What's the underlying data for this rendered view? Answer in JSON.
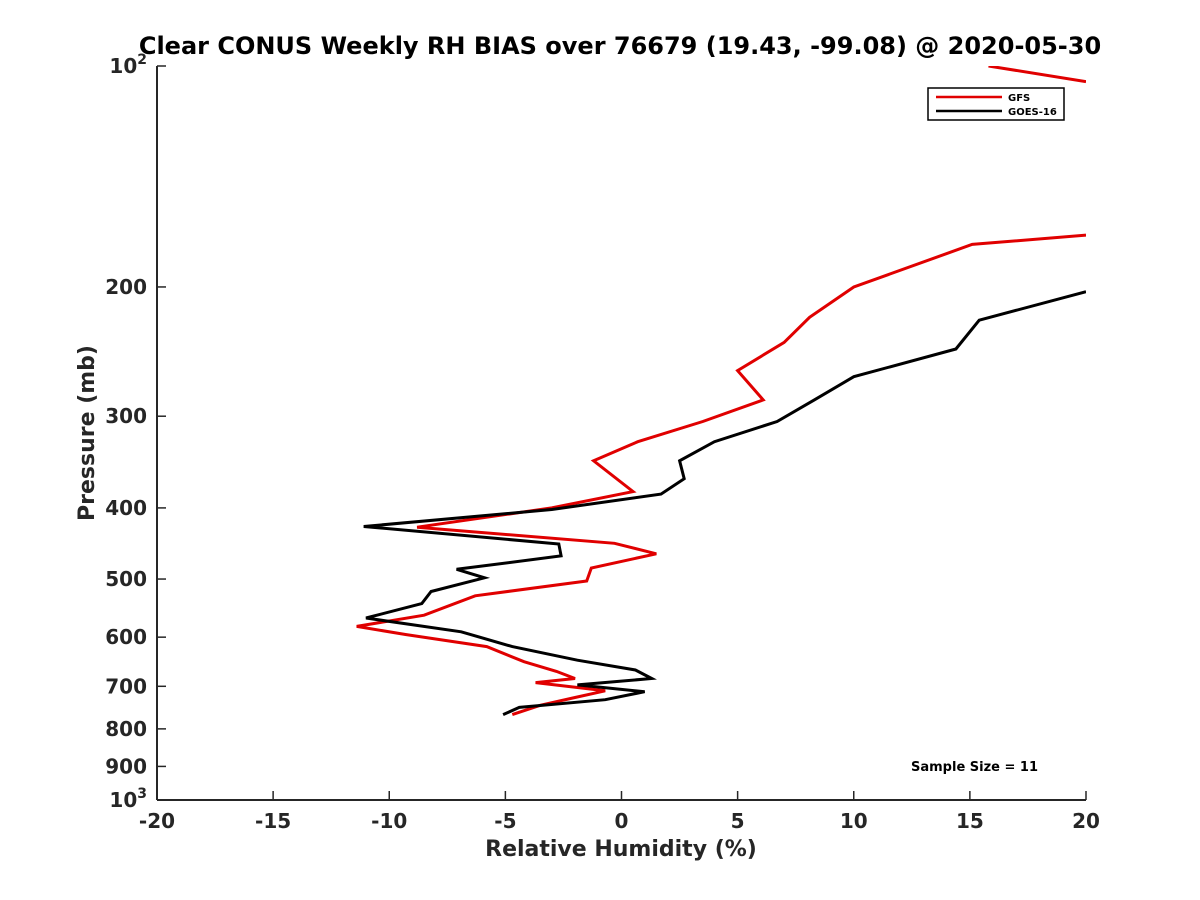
{
  "chart_data": {
    "type": "line",
    "title": "Clear CONUS Weekly RH BIAS over 76679 (19.43, -99.08) @ 2020-05-30",
    "xlabel": "Relative Humidity (%)",
    "ylabel": "Pressure (mb)",
    "xlim": [
      -20,
      20
    ],
    "ylim": [
      100,
      1000
    ],
    "y_scale": "log",
    "y_reversed": true,
    "x_ticks": [
      "-20",
      "-15",
      "-10",
      "-5",
      "0",
      "5",
      "10",
      "15",
      "20"
    ],
    "y_ticks": [
      {
        "value": 100,
        "base": "10",
        "exp": "2"
      },
      {
        "value": 200,
        "label": "200"
      },
      {
        "value": 300,
        "label": "300"
      },
      {
        "value": 400,
        "label": "400"
      },
      {
        "value": 500,
        "label": "500"
      },
      {
        "value": 600,
        "label": "600"
      },
      {
        "value": 700,
        "label": "700"
      },
      {
        "value": 800,
        "label": "800"
      },
      {
        "value": 900,
        "label": "900"
      },
      {
        "value": 1000,
        "base": "10",
        "exp": "3"
      }
    ],
    "grid": false,
    "legend_position": "top-right",
    "series": [
      {
        "name": "GFS",
        "color": "#e00000",
        "points": [
          [
            15.8,
            100
          ],
          [
            20.0,
            105
          ],
          [
            20.0,
            170
          ],
          [
            15.1,
            175
          ],
          [
            10.0,
            200
          ],
          [
            8.1,
            220
          ],
          [
            7.0,
            238
          ],
          [
            5.0,
            260
          ],
          [
            6.1,
            285
          ],
          [
            3.5,
            305
          ],
          [
            0.7,
            325
          ],
          [
            -1.2,
            345
          ],
          [
            0.5,
            380
          ],
          [
            -3.0,
            400
          ],
          [
            -8.8,
            425
          ],
          [
            -0.3,
            447
          ],
          [
            1.5,
            462
          ],
          [
            -1.3,
            483
          ],
          [
            -1.5,
            503
          ],
          [
            -6.3,
            527
          ],
          [
            -8.5,
            560
          ],
          [
            -11.4,
            580
          ],
          [
            -9.3,
            595
          ],
          [
            -5.8,
            618
          ],
          [
            -4.2,
            648
          ],
          [
            -2.8,
            668
          ],
          [
            -2.0,
            683
          ],
          [
            -3.7,
            692
          ],
          [
            -0.7,
            710
          ],
          [
            -2.0,
            725
          ],
          [
            -3.5,
            743
          ],
          [
            -4.7,
            765
          ]
        ]
      },
      {
        "name": "GOES-16",
        "color": "#000000",
        "points": [
          [
            20.0,
            203
          ],
          [
            15.4,
            222
          ],
          [
            14.4,
            243
          ],
          [
            10.0,
            265
          ],
          [
            8.3,
            285
          ],
          [
            6.7,
            305
          ],
          [
            4.0,
            325
          ],
          [
            2.5,
            345
          ],
          [
            2.7,
            365
          ],
          [
            1.7,
            383
          ],
          [
            -3.0,
            402
          ],
          [
            -11.1,
            424
          ],
          [
            -2.7,
            448
          ],
          [
            -2.6,
            465
          ],
          [
            -7.1,
            485
          ],
          [
            -5.9,
            498
          ],
          [
            -8.2,
            520
          ],
          [
            -8.6,
            540
          ],
          [
            -11.0,
            565
          ],
          [
            -6.9,
            590
          ],
          [
            -4.7,
            618
          ],
          [
            -1.9,
            645
          ],
          [
            0.6,
            665
          ],
          [
            1.3,
            683
          ],
          [
            -1.9,
            697
          ],
          [
            1.0,
            712
          ],
          [
            -0.7,
            730
          ],
          [
            -4.4,
            748
          ],
          [
            -5.1,
            765
          ]
        ]
      }
    ],
    "annotations": [
      "Sample Size = 11"
    ]
  }
}
